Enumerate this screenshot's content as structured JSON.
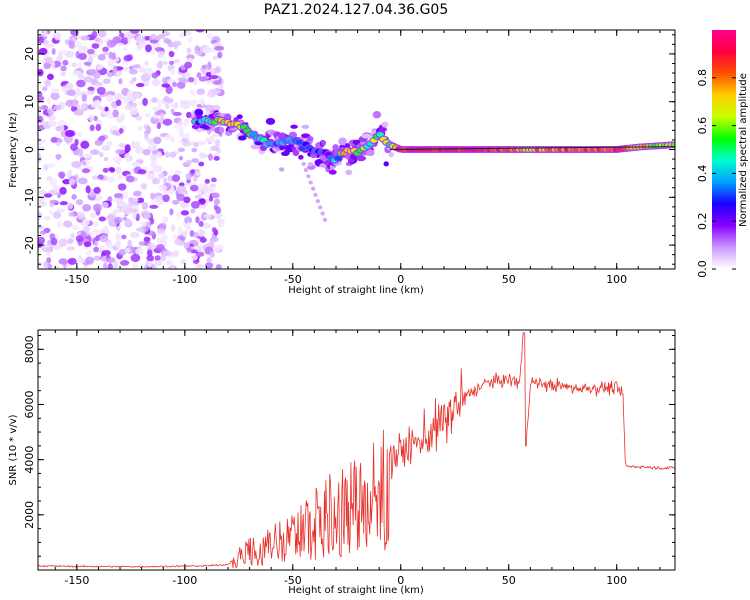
{
  "title": "PAZ1.2024.127.04.36.G05",
  "colors": {
    "snr_line": "#e8302a",
    "colormap": [
      "#ffffff",
      "#cc99ff",
      "#8a00ff",
      "#1a00ff",
      "#00a0ff",
      "#00ffd0",
      "#00ff00",
      "#c8ff00",
      "#ffd000",
      "#ff5000",
      "#ff0040",
      "#ff0090"
    ]
  },
  "chart_data": [
    {
      "type": "heatmap",
      "title": "",
      "xlabel": "Height of straight line (km)",
      "ylabel": "Frequency (Hz)",
      "xlim": [
        -168,
        127
      ],
      "ylim": [
        -25,
        25
      ],
      "xticks": [
        -150,
        -100,
        -50,
        0,
        50,
        100
      ],
      "yticks": [
        -20,
        -10,
        0,
        10,
        20
      ],
      "colorbar": {
        "label": "Normalized spectral amplitude",
        "range": [
          0,
          1
        ],
        "ticks": [
          0.0,
          0.2,
          0.4,
          0.6,
          0.8
        ]
      },
      "ridge_frequency_track": {
        "x": [
          -95,
          -85,
          -75,
          -68,
          -60,
          -50,
          -45,
          -40,
          -35,
          -30,
          -25,
          -20,
          -15,
          -10,
          -5,
          0,
          20,
          40,
          60,
          80,
          100,
          110,
          127
        ],
        "frequency": [
          6,
          6,
          5,
          3,
          1,
          2,
          1,
          0,
          -1,
          -2,
          0,
          -0.5,
          1,
          3,
          1,
          0,
          0,
          0,
          0,
          0,
          0,
          0.5,
          1
        ],
        "amplitude": [
          0.3,
          0.6,
          0.7,
          0.4,
          0.4,
          0.3,
          0.35,
          0.3,
          0.3,
          0.35,
          0.8,
          0.6,
          0.5,
          0.6,
          0.5,
          0.9,
          0.9,
          0.9,
          0.7,
          0.8,
          0.85,
          0.7,
          0.6
        ]
      },
      "noise_region": {
        "x_range": [
          -168,
          -83
        ],
        "y_range": [
          -25,
          25
        ],
        "amplitude": 0.1
      }
    },
    {
      "type": "line",
      "title": "",
      "xlabel": "Height of straight line (km)",
      "ylabel": "SNR (10 * v/v)",
      "xlim": [
        -168,
        127
      ],
      "ylim": [
        0,
        8700
      ],
      "xticks": [
        -150,
        -100,
        -50,
        0,
        50,
        100
      ],
      "yticks": [
        2000,
        4000,
        6000,
        8000
      ],
      "series": [
        {
          "x": [
            -168,
            -150,
            -120,
            -90,
            -80,
            -75,
            -70,
            -65,
            -60,
            -55,
            -50,
            -45,
            -40,
            -35,
            -30,
            -25,
            -20,
            -15,
            -10,
            -5,
            0,
            10,
            20,
            30,
            40,
            50,
            55,
            57,
            58,
            60,
            70,
            80,
            90,
            100,
            103,
            104,
            105,
            110,
            120,
            127
          ],
          "y": [
            150,
            130,
            120,
            150,
            200,
            600,
            900,
            1000,
            1200,
            1400,
            1600,
            1900,
            2200,
            2500,
            2700,
            2900,
            3200,
            3400,
            3700,
            4000,
            4300,
            4700,
            5400,
            6300,
            6800,
            6900,
            6800,
            8600,
            4500,
            6800,
            6700,
            6600,
            6600,
            6600,
            6300,
            3800,
            3750,
            3750,
            3700,
            3700
          ]
        }
      ]
    }
  ]
}
